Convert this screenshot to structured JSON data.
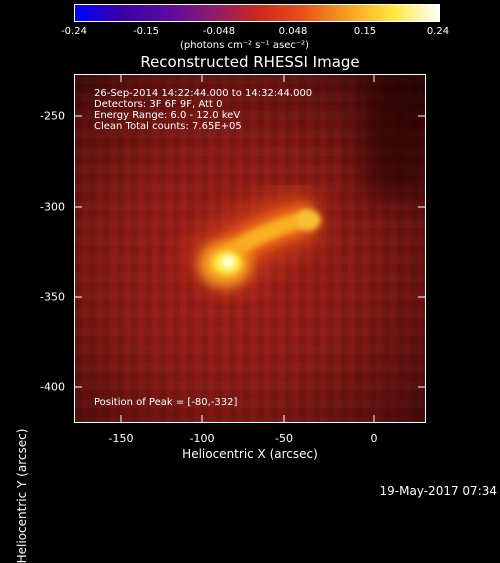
{
  "colorbar": {
    "ticks": [
      "-0.24",
      "-0.15",
      "-0.048",
      "0.048",
      "0.15",
      "0.24"
    ],
    "units": "(photons cm⁻² s⁻¹ asec⁻²)"
  },
  "title": "Reconstructed RHESSI Image",
  "info": {
    "time_range": "26-Sep-2014 14:22:44.000 to 14:32:44.000",
    "detectors": "Detectors: 3F 6F 9F, Att 0",
    "energy": "Energy Range: 6.0 - 12.0 keV",
    "clean": "Clean    Total counts: 7.65E+05",
    "peak": "Position of Peak = [-80,-332]"
  },
  "axes": {
    "xlabel": "Heliocentric X (arcsec)",
    "ylabel": "Heliocentric Y (arcsec)",
    "xticks": [
      "-150",
      "-100",
      "-50",
      "0"
    ],
    "yticks": [
      "-250",
      "-300",
      "-350",
      "-400"
    ]
  },
  "timestamp": "19-May-2017 07:34",
  "colors": {
    "colormap": [
      "#0000ff",
      "#3a00a8",
      "#5a0aa0",
      "#8c1a70",
      "#c8281e",
      "#e8501a",
      "#f8a020",
      "#ffe840",
      "#ffffff"
    ],
    "background": "#000000"
  }
}
